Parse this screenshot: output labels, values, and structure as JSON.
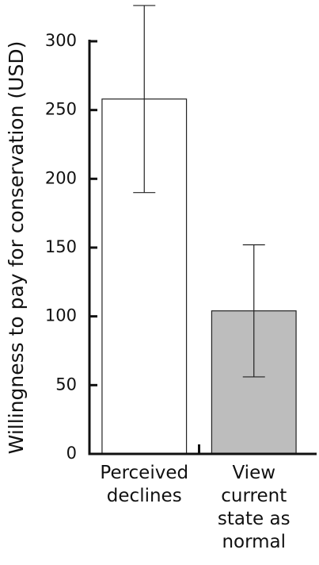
{
  "chart_data": {
    "type": "bar",
    "y_label": "Willingness to pay for conservation (USD)",
    "categories": [
      "Perceived\ndeclines",
      "View\ncurrent\nstate as\nnormal"
    ],
    "values": [
      258,
      104
    ],
    "errors": [
      68,
      48
    ],
    "colors": [
      "#ffffff",
      "#bdbdbd"
    ],
    "ylim": [
      0,
      300
    ],
    "yticks": [
      0,
      50,
      100,
      150,
      200,
      250,
      300
    ]
  }
}
